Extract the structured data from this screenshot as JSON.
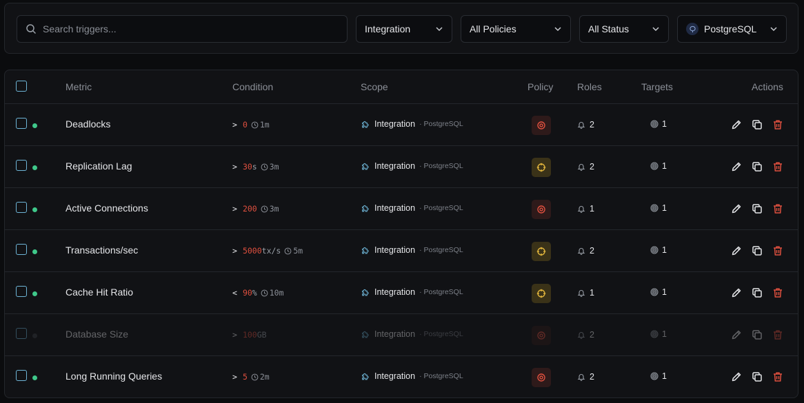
{
  "search": {
    "placeholder": "Search triggers..."
  },
  "filters": {
    "integration": "Integration",
    "policies": "All Policies",
    "status": "All Status",
    "database": "PostgreSQL"
  },
  "columns": {
    "metric": "Metric",
    "condition": "Condition",
    "scope": "Scope",
    "policy": "Policy",
    "roles": "Roles",
    "targets": "Targets",
    "actions": "Actions"
  },
  "colors": {
    "active": "#3fc88a",
    "inactive": "#3a3d42",
    "critical": "#e0503f",
    "warning": "#e0b43c",
    "accent": "#6fb6d8"
  },
  "rows": [
    {
      "metric": "Deadlocks",
      "op": ">",
      "value": "0",
      "unit": "",
      "window": "1m",
      "scope": "Integration",
      "scope_type": "· PostgreSQL",
      "policy": "critical",
      "roles": "2",
      "targets": "1",
      "active": true
    },
    {
      "metric": "Replication Lag",
      "op": ">",
      "value": "30",
      "unit": "s",
      "window": "3m",
      "scope": "Integration",
      "scope_type": "· PostgreSQL",
      "policy": "warning",
      "roles": "2",
      "targets": "1",
      "active": true
    },
    {
      "metric": "Active Connections",
      "op": ">",
      "value": "200",
      "unit": "",
      "window": "3m",
      "scope": "Integration",
      "scope_type": "· PostgreSQL",
      "policy": "critical",
      "roles": "1",
      "targets": "1",
      "active": true
    },
    {
      "metric": "Transactions/sec",
      "op": ">",
      "value": "5000",
      "unit": "tx/s",
      "window": "5m",
      "scope": "Integration",
      "scope_type": "· PostgreSQL",
      "policy": "warning",
      "roles": "2",
      "targets": "1",
      "active": true
    },
    {
      "metric": "Cache Hit Ratio",
      "op": "<",
      "value": "90",
      "unit": "%",
      "window": "10m",
      "scope": "Integration",
      "scope_type": "· PostgreSQL",
      "policy": "warning",
      "roles": "1",
      "targets": "1",
      "active": true
    },
    {
      "metric": "Database Size",
      "op": ">",
      "value": "100",
      "unit": "GB",
      "window": "",
      "scope": "Integration",
      "scope_type": "· PostgreSQL",
      "policy": "critical",
      "roles": "2",
      "targets": "1",
      "active": false
    },
    {
      "metric": "Long Running Queries",
      "op": ">",
      "value": "5",
      "unit": "",
      "window": "2m",
      "scope": "Integration",
      "scope_type": "· PostgreSQL",
      "policy": "critical",
      "roles": "2",
      "targets": "1",
      "active": true
    }
  ]
}
